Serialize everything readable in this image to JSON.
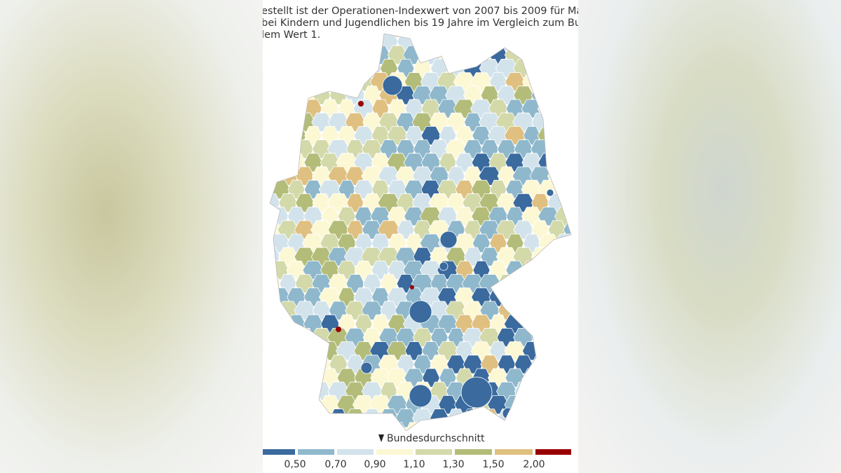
{
  "description": {
    "lines": [
      "estellt ist der Operationen-Indexwert von 2007 bis 2009 für Mandelentfern",
      "bei Kindern und Jugendlichen bis 19 Jahre im Vergleich zum Bundesdurchsc",
      "lem Wert 1."
    ]
  },
  "legend": {
    "average_label": "Bundesdurchschnitt",
    "colors": [
      "#3a6a9e",
      "#8fb8cc",
      "#d3e3ec",
      "#fdf8d4",
      "#d3d9a9",
      "#b3bd79",
      "#e0c080",
      "#980000"
    ],
    "labels": [
      "0,50",
      "0,70",
      "0,90",
      "1,10",
      "1,30",
      "1,50",
      "2,00"
    ]
  }
}
